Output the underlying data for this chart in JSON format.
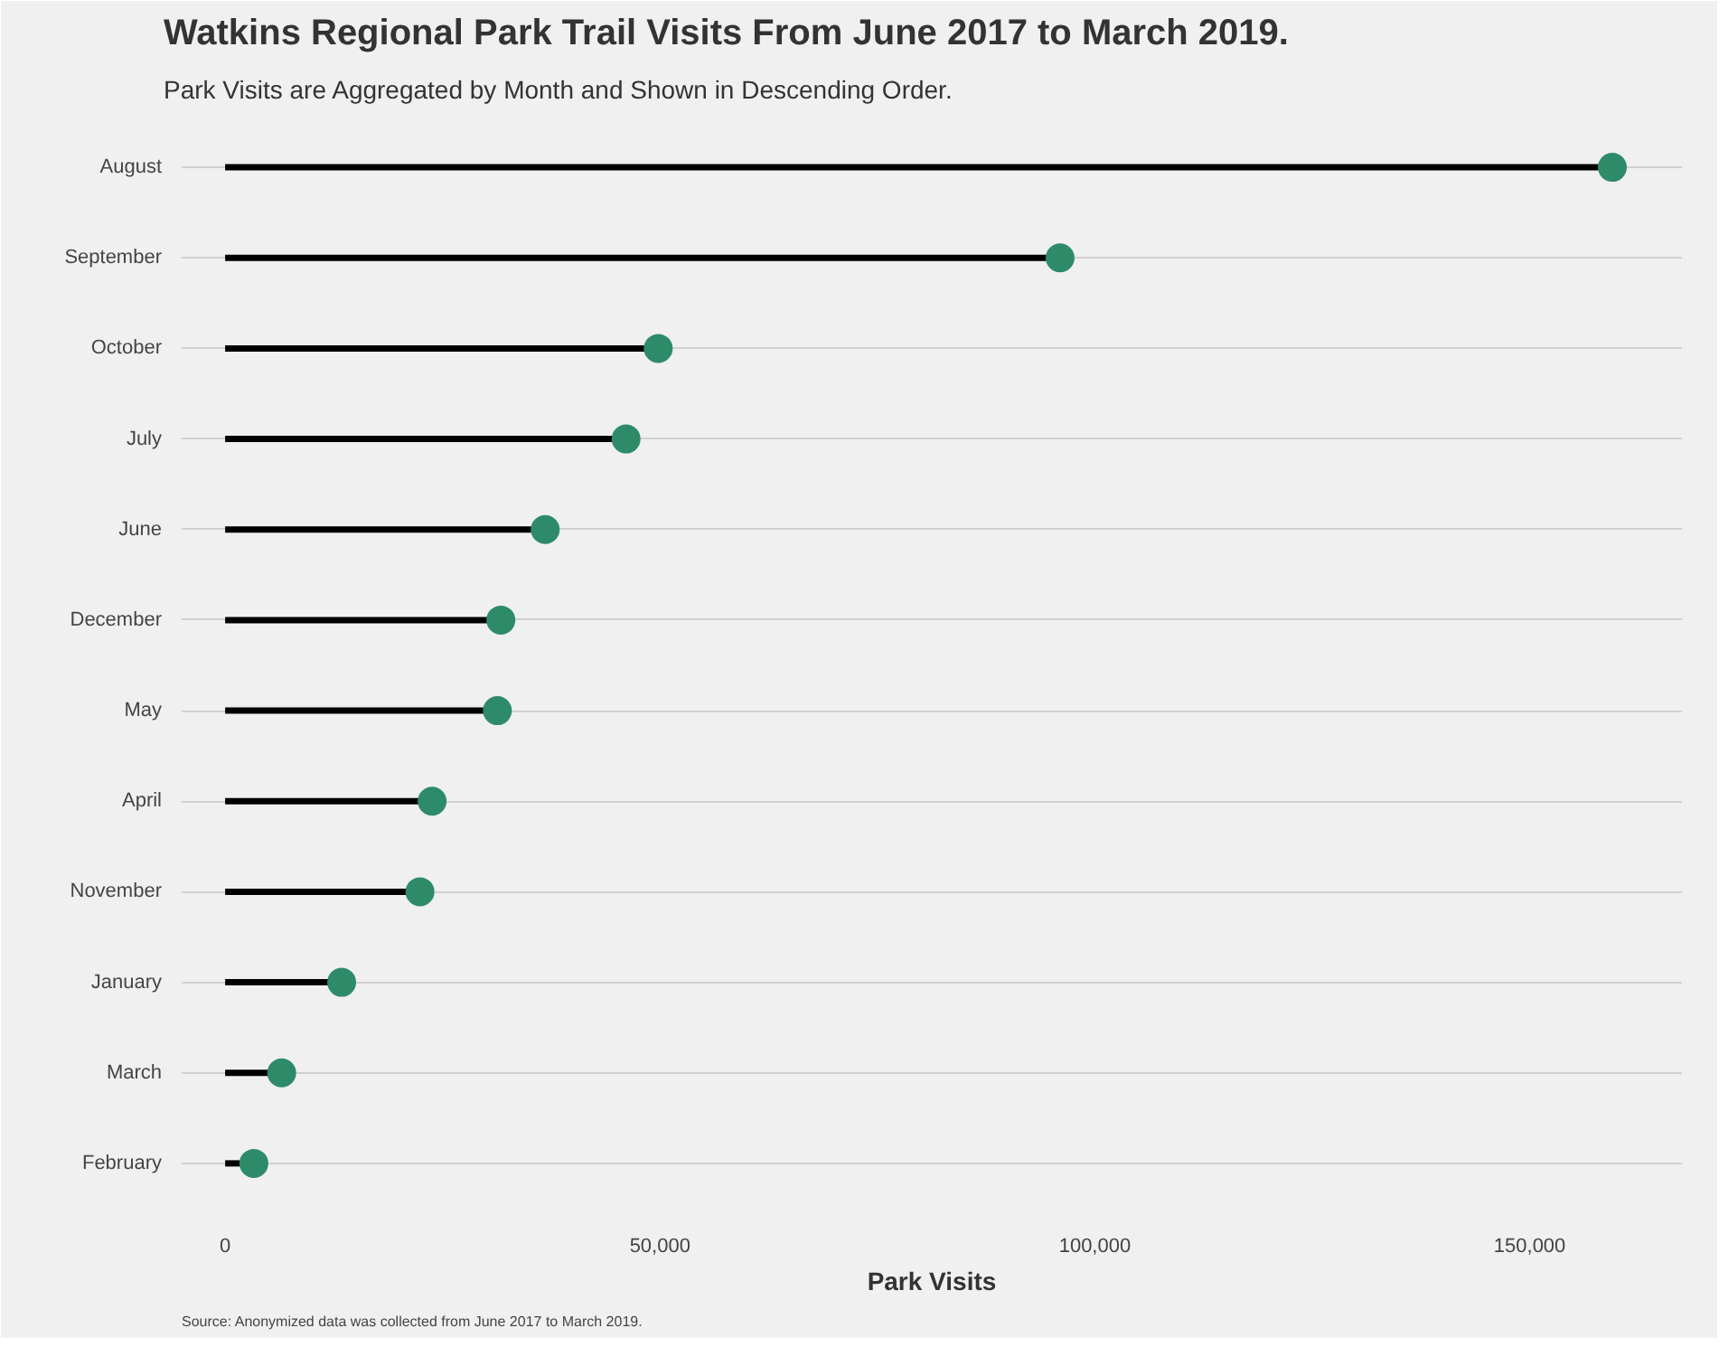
{
  "chart_data": {
    "type": "lollipop",
    "orientation": "horizontal",
    "title": "Watkins Regional Park Trail Visits From June 2017 to March 2019.",
    "subtitle": "Park Visits are Aggregated by Month and Shown in Descending Order.",
    "xlabel": "Park Visits",
    "categories": [
      "August",
      "September",
      "October",
      "July",
      "June",
      "December",
      "May",
      "April",
      "November",
      "January",
      "March",
      "February"
    ],
    "series": [
      {
        "color": "#2e8b6a",
        "values": [
          159500,
          96000,
          49800,
          46100,
          36800,
          31700,
          31300,
          23800,
          22400,
          13400,
          6500,
          3300
        ]
      }
    ],
    "xlim": [
      -5000,
      167500
    ],
    "xticks": [
      {
        "value": 0,
        "label": "0"
      },
      {
        "value": 50000,
        "label": "50,000"
      },
      {
        "value": 100000,
        "label": "100,000"
      },
      {
        "value": 150000,
        "label": "150,000"
      }
    ],
    "grid": "y",
    "marker": "circle",
    "annotations": [
      "Source: Anonymized data was collected from June 2017 to March 2019."
    ]
  }
}
